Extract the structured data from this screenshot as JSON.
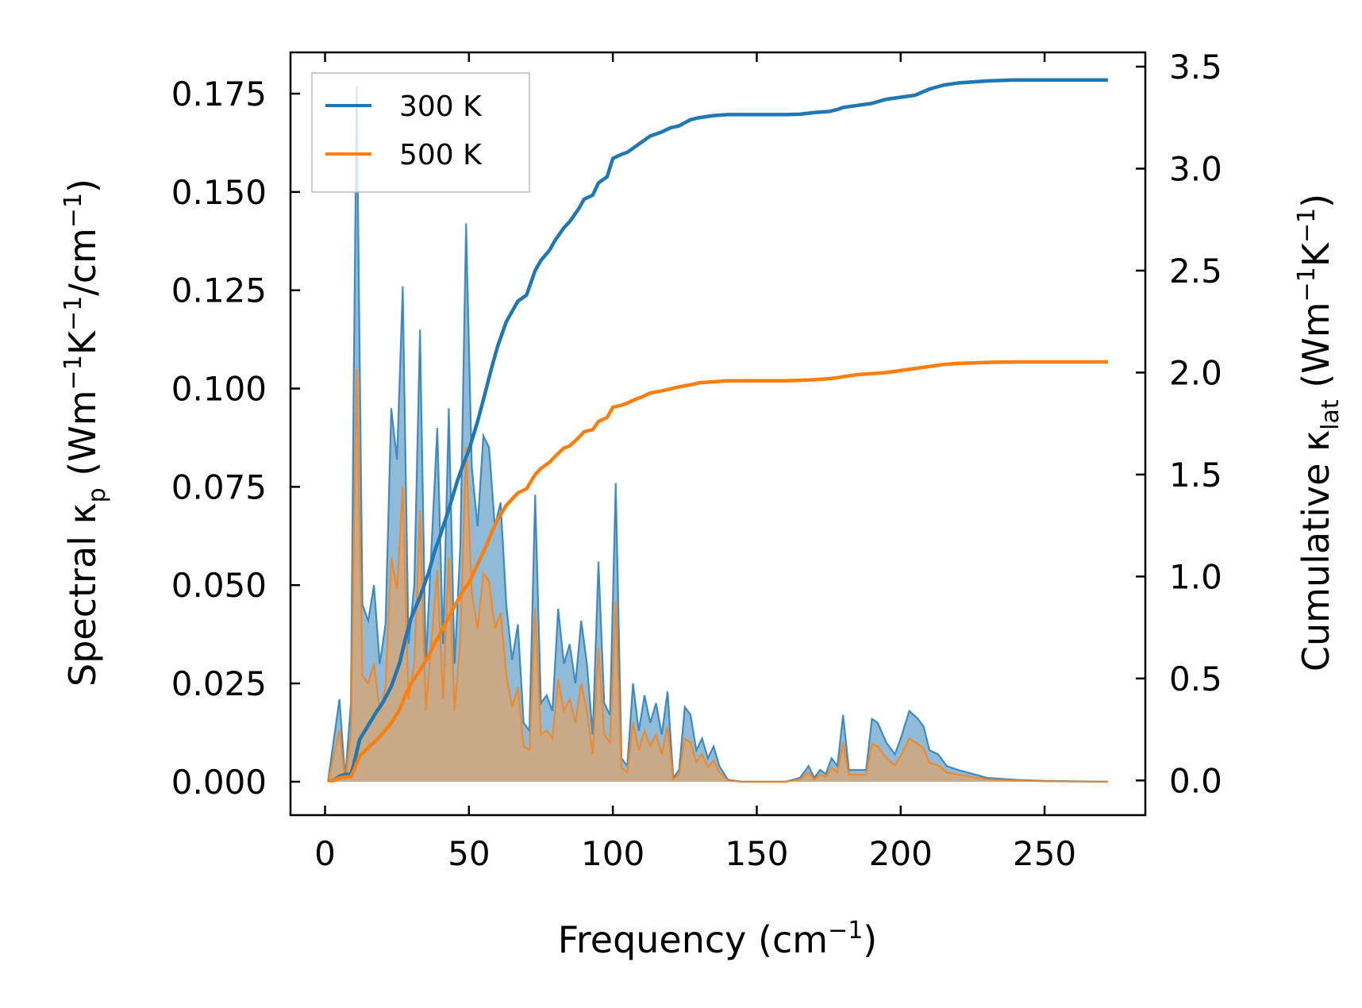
{
  "chart_data": {
    "type": "line",
    "xlabel_base": "Frequency (cm",
    "xlabel_sup": "−1",
    "xlabel_tail": ")",
    "ylabel_left": {
      "p1": "Spectral κ",
      "sub1": "p",
      "p2": " (Wm",
      "sup1": "−1",
      "p3": "K",
      "sup2": "−1",
      "p4": "/cm",
      "sup3": "−1",
      "p5": ")"
    },
    "ylabel_right": {
      "p1": "Cumulative κ",
      "sub1": "lat",
      "p2": " (Wm",
      "sup1": "−1",
      "p3": "K",
      "sup2": "−1",
      "p4": ")"
    },
    "xlim": [
      -12,
      285
    ],
    "ylim_left": [
      -0.0085,
      0.1855
    ],
    "ylim_right": [
      -0.17,
      3.57
    ],
    "x_ticks": [
      0,
      50,
      100,
      150,
      200,
      250
    ],
    "x_tick_labels": [
      "0",
      "50",
      "100",
      "150",
      "200",
      "250"
    ],
    "y_left_ticks": [
      0,
      0.025,
      0.05,
      0.075,
      0.1,
      0.125,
      0.15,
      0.175
    ],
    "y_left_tick_labels": [
      "0.000",
      "0.025",
      "0.050",
      "0.075",
      "0.100",
      "0.125",
      "0.150",
      "0.175"
    ],
    "y_right_ticks": [
      0,
      0.5,
      1,
      1.5,
      2,
      2.5,
      3,
      3.5
    ],
    "y_right_tick_labels": [
      "0.0",
      "0.5",
      "1.0",
      "1.5",
      "2.0",
      "2.5",
      "3.0",
      "3.5"
    ],
    "legend": {
      "position": "top-left",
      "entries": [
        "300 K",
        "500 K"
      ]
    },
    "colors": {
      "300K": "#1f77b4",
      "500K": "#ff7f0e",
      "fill300": "#1f77b4",
      "fill500": "#d2a679"
    },
    "series": [
      {
        "name": "300 K",
        "axis": "left",
        "style": "filled",
        "x": [
          1,
          5,
          7,
          9,
          10,
          11,
          13,
          15,
          17,
          19,
          21,
          23,
          25,
          27,
          29,
          31,
          33,
          35,
          37,
          39,
          41,
          43,
          45,
          47,
          49,
          51,
          53,
          55,
          57,
          59,
          61,
          63,
          65,
          67,
          69,
          71,
          73,
          75,
          77,
          79,
          81,
          83,
          85,
          87,
          89,
          91,
          93,
          95,
          97,
          99,
          101,
          103,
          105,
          107,
          109,
          111,
          113,
          115,
          117,
          119,
          121,
          123,
          125,
          127,
          129,
          131,
          133,
          135,
          137,
          140,
          145,
          150,
          160,
          165,
          168,
          170,
          172,
          174,
          176,
          178,
          180,
          182,
          185,
          188,
          190,
          192,
          195,
          198,
          200,
          203,
          206,
          208,
          210,
          213,
          216,
          220,
          225,
          230,
          240,
          250,
          272
        ],
        "values": [
          0,
          0.021,
          0.001,
          0.02,
          0.105,
          0.177,
          0.045,
          0.041,
          0.05,
          0.03,
          0.04,
          0.095,
          0.082,
          0.126,
          0.035,
          0.05,
          0.115,
          0.03,
          0.06,
          0.09,
          0.035,
          0.095,
          0.03,
          0.06,
          0.142,
          0.08,
          0.065,
          0.088,
          0.085,
          0.065,
          0.071,
          0.045,
          0.031,
          0.04,
          0.015,
          0.013,
          0.073,
          0.02,
          0.022,
          0.018,
          0.044,
          0.03,
          0.035,
          0.025,
          0.041,
          0.03,
          0.012,
          0.056,
          0.02,
          0.017,
          0.076,
          0.006,
          0.004,
          0.025,
          0.013,
          0.022,
          0.015,
          0.02,
          0.012,
          0.023,
          0.001,
          0.003,
          0.019,
          0.017,
          0.008,
          0.011,
          0.006,
          0.009,
          0.004,
          0.0005,
          0,
          0,
          0,
          0.001,
          0.004,
          0.001,
          0.003,
          0.002,
          0.006,
          0.004,
          0.017,
          0.003,
          0.003,
          0.003,
          0.016,
          0.015,
          0.01,
          0.007,
          0.011,
          0.018,
          0.016,
          0.014,
          0.008,
          0.007,
          0.004,
          0.003,
          0.002,
          0.001,
          0.0005,
          0.0002,
          0
        ]
      },
      {
        "name": "500 K",
        "axis": "left",
        "style": "filled",
        "x": [
          1,
          5,
          7,
          9,
          10,
          11,
          13,
          15,
          17,
          19,
          21,
          23,
          25,
          27,
          29,
          31,
          33,
          35,
          37,
          39,
          41,
          43,
          45,
          47,
          49,
          51,
          53,
          55,
          57,
          59,
          61,
          63,
          65,
          67,
          69,
          71,
          73,
          75,
          77,
          79,
          81,
          83,
          85,
          87,
          89,
          91,
          93,
          95,
          97,
          99,
          101,
          103,
          105,
          107,
          109,
          111,
          113,
          115,
          117,
          119,
          121,
          123,
          125,
          127,
          129,
          131,
          133,
          135,
          137,
          140,
          145,
          150,
          160,
          165,
          168,
          170,
          172,
          174,
          176,
          178,
          180,
          182,
          185,
          188,
          190,
          192,
          195,
          198,
          200,
          203,
          206,
          208,
          210,
          213,
          216,
          220,
          225,
          230,
          240,
          250,
          272
        ],
        "values": [
          0,
          0.013,
          0.0005,
          0.012,
          0.063,
          0.105,
          0.027,
          0.025,
          0.03,
          0.018,
          0.024,
          0.057,
          0.049,
          0.075,
          0.021,
          0.03,
          0.069,
          0.018,
          0.036,
          0.054,
          0.021,
          0.057,
          0.018,
          0.036,
          0.085,
          0.048,
          0.039,
          0.053,
          0.051,
          0.039,
          0.043,
          0.027,
          0.019,
          0.024,
          0.009,
          0.008,
          0.044,
          0.012,
          0.013,
          0.011,
          0.026,
          0.018,
          0.021,
          0.015,
          0.025,
          0.018,
          0.007,
          0.034,
          0.012,
          0.01,
          0.046,
          0.0036,
          0.0024,
          0.015,
          0.008,
          0.013,
          0.009,
          0.012,
          0.007,
          0.014,
          0.0006,
          0.0018,
          0.011,
          0.01,
          0.005,
          0.007,
          0.0036,
          0.0054,
          0.0024,
          0.0003,
          0,
          0,
          0,
          0.0006,
          0.0024,
          0.0006,
          0.0018,
          0.0012,
          0.0036,
          0.0024,
          0.01,
          0.0018,
          0.0018,
          0.0018,
          0.0096,
          0.009,
          0.006,
          0.0042,
          0.0066,
          0.011,
          0.0096,
          0.0084,
          0.0048,
          0.0042,
          0.0024,
          0.0018,
          0.0012,
          0.0006,
          0.0003,
          0.0001,
          0
        ]
      },
      {
        "name": "300 K cumulative",
        "axis": "right",
        "style": "line",
        "x": [
          1,
          3,
          5,
          7,
          9,
          10,
          12,
          15,
          18,
          20,
          23,
          26,
          28,
          30,
          33,
          36,
          38,
          40,
          43,
          46,
          48,
          50,
          53,
          56,
          58,
          60,
          63,
          65,
          67,
          70,
          73,
          75,
          78,
          80,
          83,
          85,
          88,
          90,
          93,
          95,
          98,
          100,
          103,
          105,
          108,
          110,
          113,
          117,
          120,
          123,
          127,
          130,
          135,
          140,
          150,
          160,
          165,
          170,
          175,
          178,
          180,
          185,
          190,
          195,
          200,
          205,
          210,
          215,
          220,
          230,
          240,
          250,
          272
        ],
        "values": [
          0,
          0,
          0.02,
          0.03,
          0.03,
          0.08,
          0.2,
          0.27,
          0.34,
          0.38,
          0.46,
          0.58,
          0.7,
          0.8,
          0.9,
          1.02,
          1.12,
          1.2,
          1.33,
          1.47,
          1.55,
          1.62,
          1.76,
          1.92,
          2.03,
          2.13,
          2.25,
          2.3,
          2.35,
          2.38,
          2.5,
          2.55,
          2.6,
          2.65,
          2.71,
          2.74,
          2.8,
          2.85,
          2.87,
          2.93,
          2.96,
          3.05,
          3.07,
          3.08,
          3.11,
          3.13,
          3.16,
          3.18,
          3.2,
          3.21,
          3.24,
          3.25,
          3.26,
          3.265,
          3.265,
          3.265,
          3.267,
          3.275,
          3.28,
          3.29,
          3.3,
          3.31,
          3.32,
          3.34,
          3.35,
          3.36,
          3.39,
          3.41,
          3.42,
          3.43,
          3.435,
          3.435,
          3.435
        ]
      },
      {
        "name": "500 K cumulative",
        "axis": "right",
        "style": "line",
        "x": [
          1,
          3,
          5,
          7,
          9,
          10,
          12,
          15,
          18,
          20,
          23,
          26,
          28,
          30,
          33,
          36,
          38,
          40,
          43,
          46,
          48,
          50,
          53,
          56,
          58,
          60,
          63,
          65,
          67,
          70,
          73,
          75,
          78,
          80,
          83,
          85,
          88,
          90,
          93,
          95,
          98,
          100,
          103,
          105,
          108,
          110,
          113,
          117,
          120,
          123,
          127,
          130,
          135,
          140,
          150,
          160,
          165,
          170,
          175,
          178,
          180,
          185,
          190,
          195,
          200,
          205,
          210,
          215,
          220,
          230,
          240,
          250,
          272
        ],
        "values": [
          0,
          0,
          0.012,
          0.018,
          0.018,
          0.048,
          0.12,
          0.16,
          0.2,
          0.23,
          0.28,
          0.35,
          0.42,
          0.48,
          0.54,
          0.61,
          0.67,
          0.72,
          0.8,
          0.88,
          0.93,
          0.97,
          1.06,
          1.15,
          1.22,
          1.28,
          1.35,
          1.38,
          1.41,
          1.43,
          1.5,
          1.53,
          1.56,
          1.59,
          1.63,
          1.64,
          1.68,
          1.71,
          1.72,
          1.76,
          1.78,
          1.83,
          1.84,
          1.85,
          1.87,
          1.88,
          1.9,
          1.91,
          1.92,
          1.93,
          1.94,
          1.95,
          1.955,
          1.96,
          1.96,
          1.96,
          1.962,
          1.965,
          1.97,
          1.975,
          1.98,
          1.99,
          1.995,
          2.0,
          2.01,
          2.02,
          2.03,
          2.04,
          2.045,
          2.05,
          2.052,
          2.052,
          2.052
        ]
      }
    ]
  }
}
